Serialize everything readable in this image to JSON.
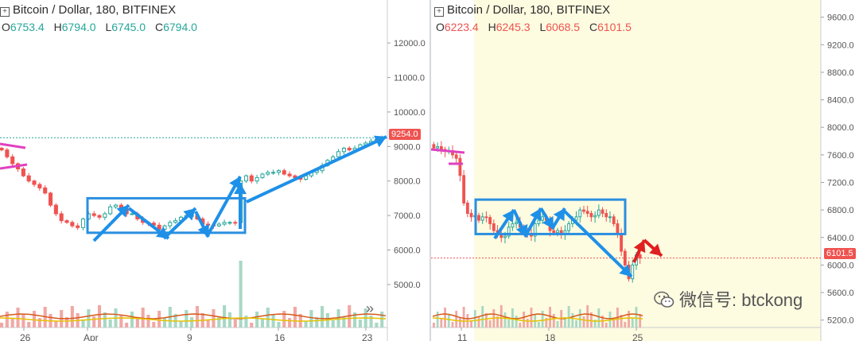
{
  "left": {
    "title": "Bitcoin / Dollar, 180, BITFINEX",
    "ohlc": {
      "O": "6753.4",
      "H": "6794.0",
      "L": "6745.0",
      "C": "6794.0"
    },
    "ohlc_color": "#26a69a",
    "last_price_label": "9254.0",
    "scroll_icon": "»"
  },
  "right": {
    "title": "Bitcoin / Dollar, 180, BITFINEX",
    "ohlc": {
      "O": "6223.4",
      "H": "6245.3",
      "L": "6068.5",
      "C": "6101.5"
    },
    "ohlc_color": "#ef5350",
    "last_price_label": "6101.5"
  },
  "watermark": {
    "text": "微信号: btckong",
    "icon": "wechat-icon"
  },
  "colors": {
    "up": "#26a69a",
    "down": "#ef5350",
    "arrow_blue": "#1e90e8",
    "arrow_red": "#e02020",
    "box": "#2b8fe0",
    "resist": "#e040c0",
    "shade": "#fdfbe0"
  },
  "chart_data": [
    {
      "type": "candlestick",
      "title": "Bitcoin / Dollar, 180, BITFINEX",
      "x_ticks": [
        "26",
        "Apr",
        "9",
        "16",
        "23"
      ],
      "y_ticks": [
        "5000.0",
        "6000.0",
        "7000.0",
        "8000.0",
        "9000.0",
        "10000.0",
        "11000.0",
        "12000.0"
      ],
      "ylim": [
        4400,
        12600
      ],
      "closes": [
        8900,
        8700,
        8500,
        8350,
        8150,
        8000,
        7900,
        7800,
        7650,
        7300,
        7050,
        6850,
        6800,
        6700,
        6650,
        6900,
        7050,
        7000,
        6950,
        7050,
        7250,
        7300,
        7200,
        7050,
        7050,
        6900,
        6800,
        6780,
        6720,
        6600,
        6700,
        6800,
        6850,
        6950,
        7000,
        7000,
        6900,
        6750,
        6720,
        6700,
        6750,
        6800,
        6800,
        6794,
        8000,
        8150,
        8000,
        8100,
        8200,
        8250,
        8250,
        8300,
        8200,
        8150,
        8100,
        8050,
        8150,
        8250,
        8300,
        8450,
        8600,
        8700,
        8850,
        8950,
        8900,
        8950,
        9050,
        9100,
        9150,
        9200,
        9254
      ],
      "channel": {
        "low": 6500,
        "high": 7500
      },
      "last_price": 9254.0
    },
    {
      "type": "candlestick",
      "title": "Bitcoin / Dollar, 180, BITFINEX",
      "x_ticks": [
        "11",
        "18",
        "25"
      ],
      "y_ticks": [
        "5200.0",
        "5600.0",
        "6000.0",
        "6400.0",
        "6800.0",
        "7200.0",
        "7600.0",
        "8000.0",
        "8400.0",
        "8800.0",
        "9200.0",
        "9600.0"
      ],
      "ylim": [
        5000,
        9850
      ],
      "closes": [
        7700,
        7720,
        7680,
        7650,
        7660,
        7600,
        7550,
        7300,
        6900,
        6750,
        6700,
        6720,
        6650,
        6700,
        6690,
        6600,
        6500,
        6450,
        6400,
        6420,
        6550,
        6600,
        6620,
        6550,
        6480,
        6450,
        6420,
        6600,
        6650,
        6700,
        6650,
        6500,
        6470,
        6500,
        6450,
        6500,
        6600,
        6650,
        6700,
        6800,
        6780,
        6750,
        6700,
        6720,
        6800,
        6750,
        6700,
        6700,
        6600,
        6450,
        6200,
        6000,
        5800,
        6000,
        6150,
        6101.5
      ],
      "channel": {
        "low": 6450,
        "high": 6950
      },
      "last_price": 6101.5
    }
  ]
}
